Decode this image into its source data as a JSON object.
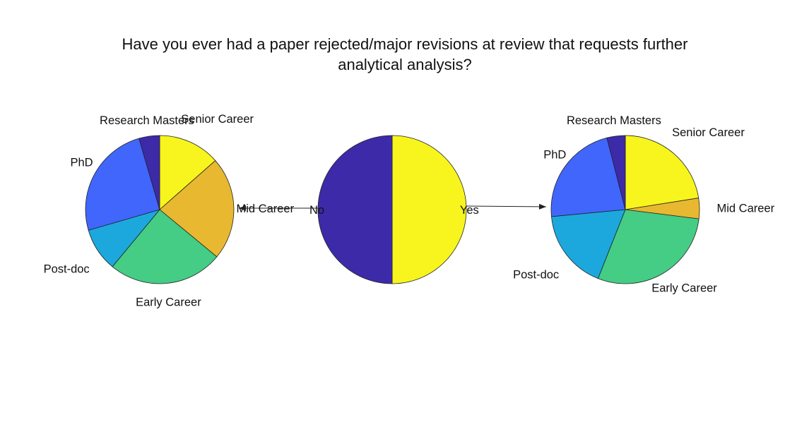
{
  "title_lines": [
    "Have you ever had a paper rejected/major revisions at review that requests further",
    "analytical analysis?"
  ],
  "chart_data": [
    {
      "type": "pie",
      "name": "overall",
      "title": "Have you ever had a paper rejected/major revisions at review that requests further analytical analysis?",
      "labels": [
        "Yes",
        "No"
      ],
      "values": [
        50,
        50
      ],
      "colors": [
        "#f7f51d",
        "#3d2aa8"
      ]
    },
    {
      "type": "pie",
      "name": "no-breakdown",
      "parent": "No",
      "labels": [
        "Senior Career",
        "Mid Career",
        "Early Career",
        "Post-doc",
        "PhD",
        "Research Masters"
      ],
      "values": [
        13.5,
        22.5,
        25,
        9.5,
        25,
        4.5
      ],
      "colors": [
        "#f7f51d",
        "#e8b830",
        "#45cc85",
        "#1ca8dd",
        "#4166fc",
        "#3d2aa8"
      ]
    },
    {
      "type": "pie",
      "name": "yes-breakdown",
      "parent": "Yes",
      "labels": [
        "Senior Career",
        "Mid Career",
        "Early Career",
        "Post-doc",
        "PhD",
        "Research Masters"
      ],
      "values": [
        22.5,
        4.5,
        29,
        17.5,
        22.5,
        4
      ],
      "colors": [
        "#f7f51d",
        "#e8b830",
        "#45cc85",
        "#1ca8dd",
        "#4166fc",
        "#3d2aa8"
      ]
    }
  ]
}
